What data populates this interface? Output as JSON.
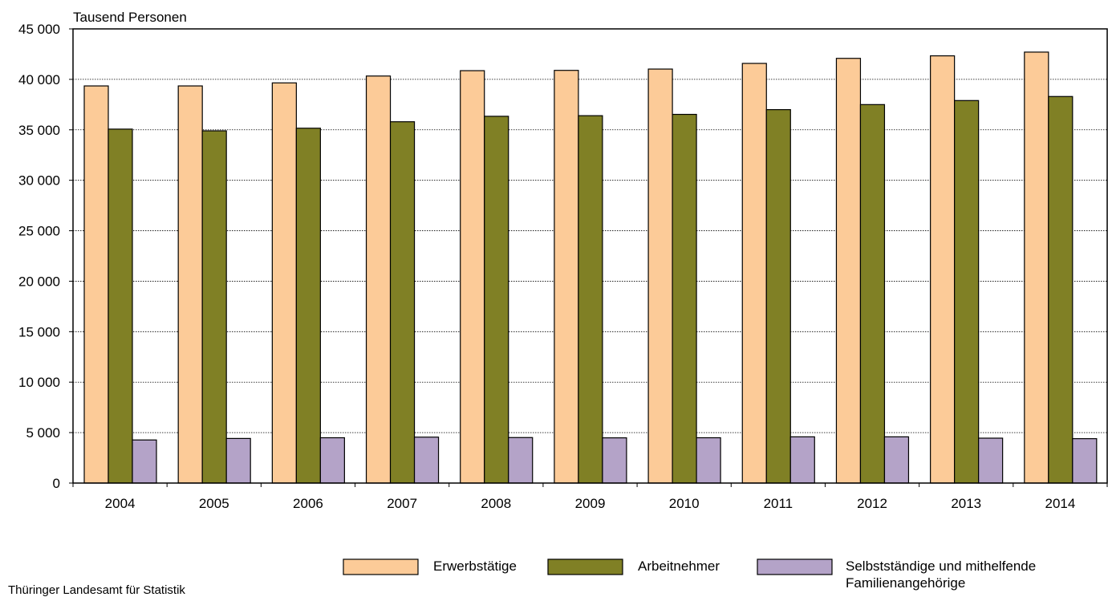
{
  "chart_data": {
    "type": "bar",
    "unit_label": "Tausend Personen",
    "categories": [
      "2004",
      "2005",
      "2006",
      "2007",
      "2008",
      "2009",
      "2010",
      "2011",
      "2012",
      "2013",
      "2014"
    ],
    "series": [
      {
        "name": "Erwerbstätige",
        "color": "#FCCB98",
        "values": [
          39350,
          39350,
          39650,
          40330,
          40860,
          40890,
          41020,
          41580,
          42080,
          42330,
          42700
        ]
      },
      {
        "name": "Arbeitnehmer",
        "color": "#808025",
        "values": [
          35070,
          34900,
          35160,
          35800,
          36340,
          36400,
          36530,
          37000,
          37500,
          37900,
          38300
        ]
      },
      {
        "name": "Selbstständige und mithelfende Familienangehörige",
        "color": "#B4A3C8",
        "values": [
          4270,
          4420,
          4490,
          4550,
          4510,
          4480,
          4490,
          4580,
          4580,
          4450,
          4400
        ]
      }
    ],
    "ylim": [
      0,
      45000
    ],
    "yticks": [
      0,
      5000,
      10000,
      15000,
      20000,
      25000,
      30000,
      35000,
      40000,
      45000
    ],
    "ytick_labels": [
      "0",
      "5 000",
      "10 000",
      "15 000",
      "20 000",
      "25 000",
      "30 000",
      "35 000",
      "40 000",
      "45 000"
    ],
    "grid": true,
    "legend_position": "bottom"
  },
  "legend": {
    "item1": "Erwerbstätige",
    "item2": "Arbeitnehmer",
    "item3_line1": "Selbstständige und mithelfende",
    "item3_line2": "Familienangehörige"
  },
  "source": "Thüringer Landesamt für Statistik"
}
